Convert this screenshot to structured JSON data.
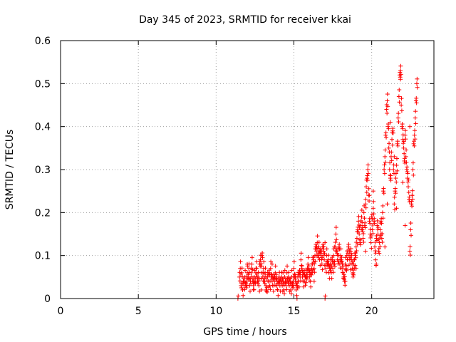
{
  "chart_data": {
    "type": "scatter",
    "title": "Day 345 of 2023, SRMTID for receiver kkai",
    "xlabel": "GPS time / hours",
    "ylabel": "SRMTID / TECUs",
    "xlim": [
      0,
      24
    ],
    "ylim": [
      0,
      0.6
    ],
    "xticks": [
      0,
      5,
      10,
      15,
      20
    ],
    "yticks": [
      0,
      0.1,
      0.2,
      0.3,
      0.4,
      0.5,
      0.6
    ],
    "xtick_labels": [
      "0",
      "5",
      "10",
      "15",
      "20"
    ],
    "ytick_labels": [
      "0",
      "0.1",
      "0.2",
      "0.3",
      "0.4",
      "0.5",
      "0.6"
    ],
    "grid": true,
    "marker": "+",
    "color": "#ff0000",
    "series": [
      {
        "name": "SRMTID",
        "x": [
          11.4,
          11.5,
          11.55,
          11.6,
          11.65,
          11.7,
          11.75,
          11.8,
          11.85,
          11.9,
          11.95,
          12.0,
          12.05,
          12.1,
          12.15,
          12.2,
          12.25,
          12.3,
          12.35,
          12.4,
          12.45,
          12.5,
          12.55,
          12.6,
          12.65,
          12.7,
          12.75,
          12.8,
          12.85,
          12.9,
          12.95,
          13.0,
          13.05,
          13.1,
          13.15,
          13.2,
          13.25,
          13.3,
          13.35,
          13.4,
          13.45,
          13.5,
          13.55,
          13.6,
          13.65,
          13.7,
          13.75,
          13.8,
          13.85,
          13.9,
          13.95,
          14.0,
          14.05,
          14.1,
          14.15,
          14.2,
          14.25,
          14.3,
          14.35,
          14.4,
          14.45,
          14.5,
          14.55,
          14.6,
          14.65,
          14.7,
          14.75,
          14.8,
          14.85,
          14.9,
          14.95,
          15.0,
          15.05,
          15.1,
          15.15,
          15.2,
          15.25,
          15.3,
          15.35,
          15.4,
          15.45,
          15.5,
          15.55,
          15.6,
          15.65,
          15.7,
          15.75,
          15.8,
          15.85,
          15.9,
          15.95,
          16.0,
          16.05,
          16.1,
          16.15,
          16.2,
          16.25,
          16.3,
          16.35,
          16.4,
          16.45,
          16.5,
          16.55,
          16.6,
          16.65,
          16.7,
          16.75,
          16.8,
          16.85,
          16.9,
          16.95,
          17.0,
          17.05,
          17.1,
          17.15,
          17.2,
          17.25,
          17.3,
          17.35,
          17.4,
          17.45,
          17.5,
          17.55,
          17.6,
          17.65,
          17.7,
          17.75,
          17.8,
          17.85,
          17.9,
          17.95,
          18.0,
          18.05,
          18.1,
          18.15,
          18.2,
          18.25,
          18.3,
          18.35,
          18.4,
          18.45,
          18.5,
          18.55,
          18.6,
          18.65,
          18.7,
          18.75,
          18.8,
          18.85,
          18.9,
          18.95,
          19.0,
          19.05,
          19.1,
          19.15,
          19.2,
          19.25,
          19.3,
          19.35,
          19.4,
          19.45,
          19.5,
          19.55,
          19.6,
          19.65,
          19.7,
          19.75,
          19.8,
          19.85,
          19.9,
          19.95,
          20.0,
          20.05,
          20.1,
          20.15,
          20.2,
          20.25,
          20.3,
          20.35,
          20.4,
          20.45,
          20.5,
          20.55,
          20.6,
          20.65,
          20.7,
          20.75,
          20.8,
          20.85,
          20.9,
          20.95,
          21.0,
          21.05,
          21.1,
          21.15,
          21.2,
          21.25,
          21.3,
          21.35,
          21.4,
          21.45,
          21.5,
          21.55,
          21.6,
          21.65,
          21.7,
          21.75,
          21.8,
          21.85,
          21.9,
          21.95,
          22.0,
          22.05,
          22.1,
          22.15,
          22.2,
          22.25,
          22.3,
          22.35,
          22.4,
          22.45,
          22.5,
          22.55,
          22.6,
          22.65,
          22.7,
          22.75,
          22.8,
          22.85,
          22.9
        ],
        "y": [
          0.0,
          0.05,
          0.07,
          0.03,
          0.06,
          0.02,
          0.04,
          0.03,
          0.05,
          0.03,
          0.04,
          0.06,
          0.05,
          0.07,
          0.03,
          0.04,
          0.06,
          0.08,
          0.04,
          0.03,
          0.05,
          0.04,
          0.06,
          0.07,
          0.04,
          0.05,
          0.03,
          0.08,
          0.09,
          0.06,
          0.1,
          0.05,
          0.07,
          0.04,
          0.06,
          0.03,
          0.02,
          0.05,
          0.04,
          0.06,
          0.03,
          0.07,
          0.05,
          0.04,
          0.03,
          0.05,
          0.04,
          0.06,
          0.05,
          0.03,
          0.02,
          0.04,
          0.05,
          0.03,
          0.04,
          0.05,
          0.03,
          0.04,
          0.02,
          0.05,
          0.04,
          0.03,
          0.06,
          0.04,
          0.05,
          0.03,
          0.04,
          0.02,
          0.05,
          0.03,
          0.04,
          0.07,
          0.05,
          0.04,
          0.02,
          0.03,
          0.05,
          0.04,
          0.06,
          0.05,
          0.09,
          0.07,
          0.05,
          0.04,
          0.06,
          0.04,
          0.05,
          0.05,
          0.06,
          0.08,
          0.07,
          0.05,
          0.04,
          0.06,
          0.07,
          0.08,
          0.09,
          0.07,
          0.1,
          0.12,
          0.11,
          0.13,
          0.1,
          0.12,
          0.09,
          0.11,
          0.1,
          0.08,
          0.12,
          0.11,
          0.09,
          0.0,
          0.07,
          0.1,
          0.08,
          0.09,
          0.06,
          0.07,
          0.08,
          0.06,
          0.09,
          0.07,
          0.1,
          0.08,
          0.12,
          0.15,
          0.11,
          0.09,
          0.1,
          0.12,
          0.08,
          0.1,
          0.09,
          0.07,
          0.06,
          0.05,
          0.04,
          0.08,
          0.07,
          0.1,
          0.09,
          0.12,
          0.1,
          0.08,
          0.11,
          0.09,
          0.07,
          0.06,
          0.08,
          0.09,
          0.1,
          0.12,
          0.14,
          0.16,
          0.18,
          0.15,
          0.13,
          0.17,
          0.19,
          0.16,
          0.14,
          0.2,
          0.17,
          0.22,
          0.26,
          0.28,
          0.3,
          0.24,
          0.18,
          0.15,
          0.13,
          0.19,
          0.16,
          0.21,
          0.18,
          0.12,
          0.09,
          0.14,
          0.17,
          0.15,
          0.11,
          0.13,
          0.16,
          0.18,
          0.14,
          0.2,
          0.25,
          0.3,
          0.33,
          0.38,
          0.44,
          0.46,
          0.4,
          0.35,
          0.3,
          0.28,
          0.33,
          0.37,
          0.39,
          0.3,
          0.22,
          0.25,
          0.28,
          0.31,
          0.36,
          0.42,
          0.47,
          0.52,
          0.53,
          0.45,
          0.4,
          0.37,
          0.35,
          0.32,
          0.38,
          0.33,
          0.3,
          0.28,
          0.26,
          0.23,
          0.11,
          0.16,
          0.22,
          0.24,
          0.3,
          0.36,
          0.38,
          0.42,
          0.46,
          0.5
        ],
        "extra_points": [
          [
            12.0,
            0.08
          ],
          [
            12.4,
            0.02
          ],
          [
            12.9,
            0.02
          ],
          [
            13.6,
            0.08
          ],
          [
            14.3,
            0.06
          ],
          [
            15.2,
            0.0
          ],
          [
            16.3,
            0.04
          ],
          [
            17.0,
            0.13
          ],
          [
            17.6,
            0.12
          ],
          [
            18.8,
            0.05
          ],
          [
            19.6,
            0.11
          ],
          [
            20.1,
            0.25
          ],
          [
            20.6,
            0.15
          ],
          [
            21.2,
            0.41
          ],
          [
            21.6,
            0.21
          ],
          [
            21.85,
            0.51
          ],
          [
            22.15,
            0.17
          ],
          [
            22.45,
            0.4
          ],
          [
            20.3,
            0.08
          ],
          [
            19.0,
            0.07
          ],
          [
            18.3,
            0.04
          ],
          [
            17.2,
            0.08
          ],
          [
            16.9,
            0.11
          ],
          [
            13.2,
            0.02
          ],
          [
            21.0,
            0.22
          ],
          [
            20.85,
            0.12
          ],
          [
            22.0,
            0.27
          ],
          [
            22.6,
            0.24
          ],
          [
            21.45,
            0.33
          ],
          [
            19.85,
            0.24
          ]
        ]
      }
    ]
  }
}
